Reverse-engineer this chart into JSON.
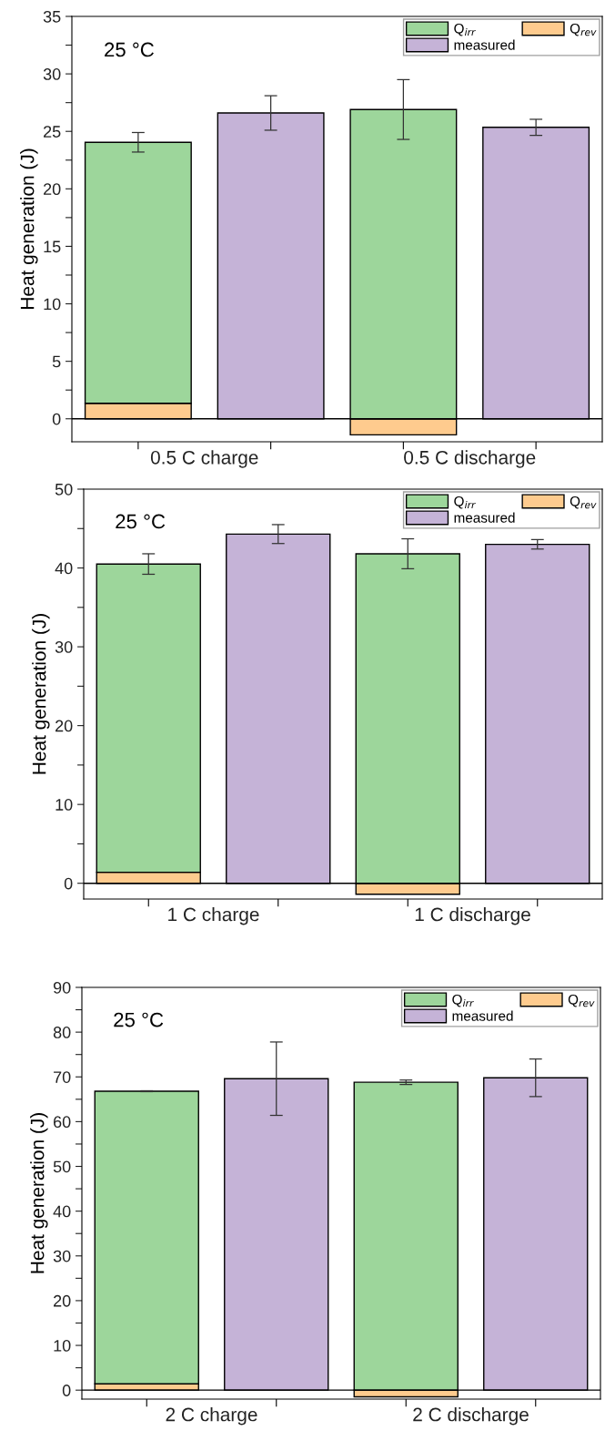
{
  "chart_data": [
    {
      "type": "bar",
      "ylabel": "Heat generation (J)",
      "annotations": [
        "25 °C"
      ],
      "categories": [
        "0.5 C charge",
        null,
        "0.5 C discharge",
        null
      ],
      "stacked": true,
      "legend": "top right",
      "series": [
        {
          "name": "Q$_{rev}$",
          "color": "#fecb8e",
          "values": [
            1.35,
            null,
            -1.4,
            null
          ]
        },
        {
          "name": "Q$_{irr}$",
          "color": "#9dd69b",
          "values": [
            22.7,
            null,
            26.9,
            null
          ],
          "errors": [
            0.85,
            null,
            2.6,
            null
          ]
        },
        {
          "name": "measured",
          "color": "#c5b3d7",
          "values": [
            null,
            26.6,
            null,
            25.35
          ],
          "errors": [
            null,
            1.5,
            null,
            0.7
          ]
        }
      ],
      "ylim": [
        -2,
        35
      ],
      "yticks": [
        0,
        {
          "value": 2.5,
          "label": null
        },
        5,
        {
          "value": 7.5,
          "label": null
        },
        10,
        {
          "value": 12.5,
          "label": null
        },
        15,
        {
          "value": 17.5,
          "label": null
        },
        20,
        {
          "value": 22.5,
          "label": null
        },
        25,
        {
          "value": 27.5,
          "label": null
        },
        30,
        {
          "value": 32.5,
          "label": null
        },
        35
      ]
    },
    {
      "type": "bar",
      "ylabel": "Heat generation (J)",
      "annotations": [
        "25 °C"
      ],
      "categories": [
        "1 C charge",
        null,
        "1 C discharge",
        null
      ],
      "stacked": true,
      "legend": "top right",
      "series": [
        {
          "name": "Q$_{rev}$",
          "color": "#fecb8e",
          "values": [
            1.4,
            null,
            -1.4,
            null
          ]
        },
        {
          "name": "Q$_{irr}$",
          "color": "#9dd69b",
          "values": [
            39.1,
            null,
            41.8,
            null
          ],
          "errors": [
            1.3,
            null,
            1.9,
            null
          ]
        },
        {
          "name": "measured",
          "color": "#c5b3d7",
          "values": [
            null,
            44.3,
            null,
            43
          ],
          "errors": [
            null,
            1.2,
            null,
            0.6
          ]
        }
      ],
      "ylim": [
        -2,
        50
      ],
      "yticks": [
        0,
        {
          "value": 5,
          "label": null
        },
        10,
        {
          "value": 15,
          "label": null
        },
        20,
        {
          "value": 25,
          "label": null
        },
        30,
        {
          "value": 35,
          "label": null
        },
        40,
        {
          "value": 45,
          "label": null
        },
        50
      ]
    },
    {
      "type": "bar",
      "ylabel": "Heat generation (J)",
      "annotations": [
        "25 °C"
      ],
      "categories": [
        "2 C charge",
        null,
        "2 C discharge",
        null
      ],
      "stacked": true,
      "legend": "top right",
      "series": [
        {
          "name": "Q$_{rev}$",
          "color": "#fecb8e",
          "values": [
            1.4,
            null,
            -1.5,
            null
          ]
        },
        {
          "name": "Q$_{irr}$",
          "color": "#9dd69b",
          "values": [
            65.4,
            null,
            68.8,
            null
          ],
          "errors": [
            0.1,
            null,
            0.5,
            null
          ]
        },
        {
          "name": "measured",
          "color": "#c5b3d7",
          "values": [
            null,
            69.6,
            null,
            69.8
          ],
          "errors": [
            null,
            8.2,
            null,
            4.2
          ]
        }
      ],
      "ylim": [
        -2,
        90
      ],
      "yticks": [
        0,
        {
          "value": 5,
          "label": null
        },
        10,
        {
          "value": 15,
          "label": null
        },
        20,
        {
          "value": 25,
          "label": null
        },
        30,
        {
          "value": 35,
          "label": null
        },
        40,
        {
          "value": 45,
          "label": null
        },
        50,
        {
          "value": 55,
          "label": null
        },
        60,
        {
          "value": 65,
          "label": null
        },
        70,
        {
          "value": 75,
          "label": null
        },
        80,
        {
          "value": 85,
          "label": null
        },
        90
      ]
    }
  ]
}
